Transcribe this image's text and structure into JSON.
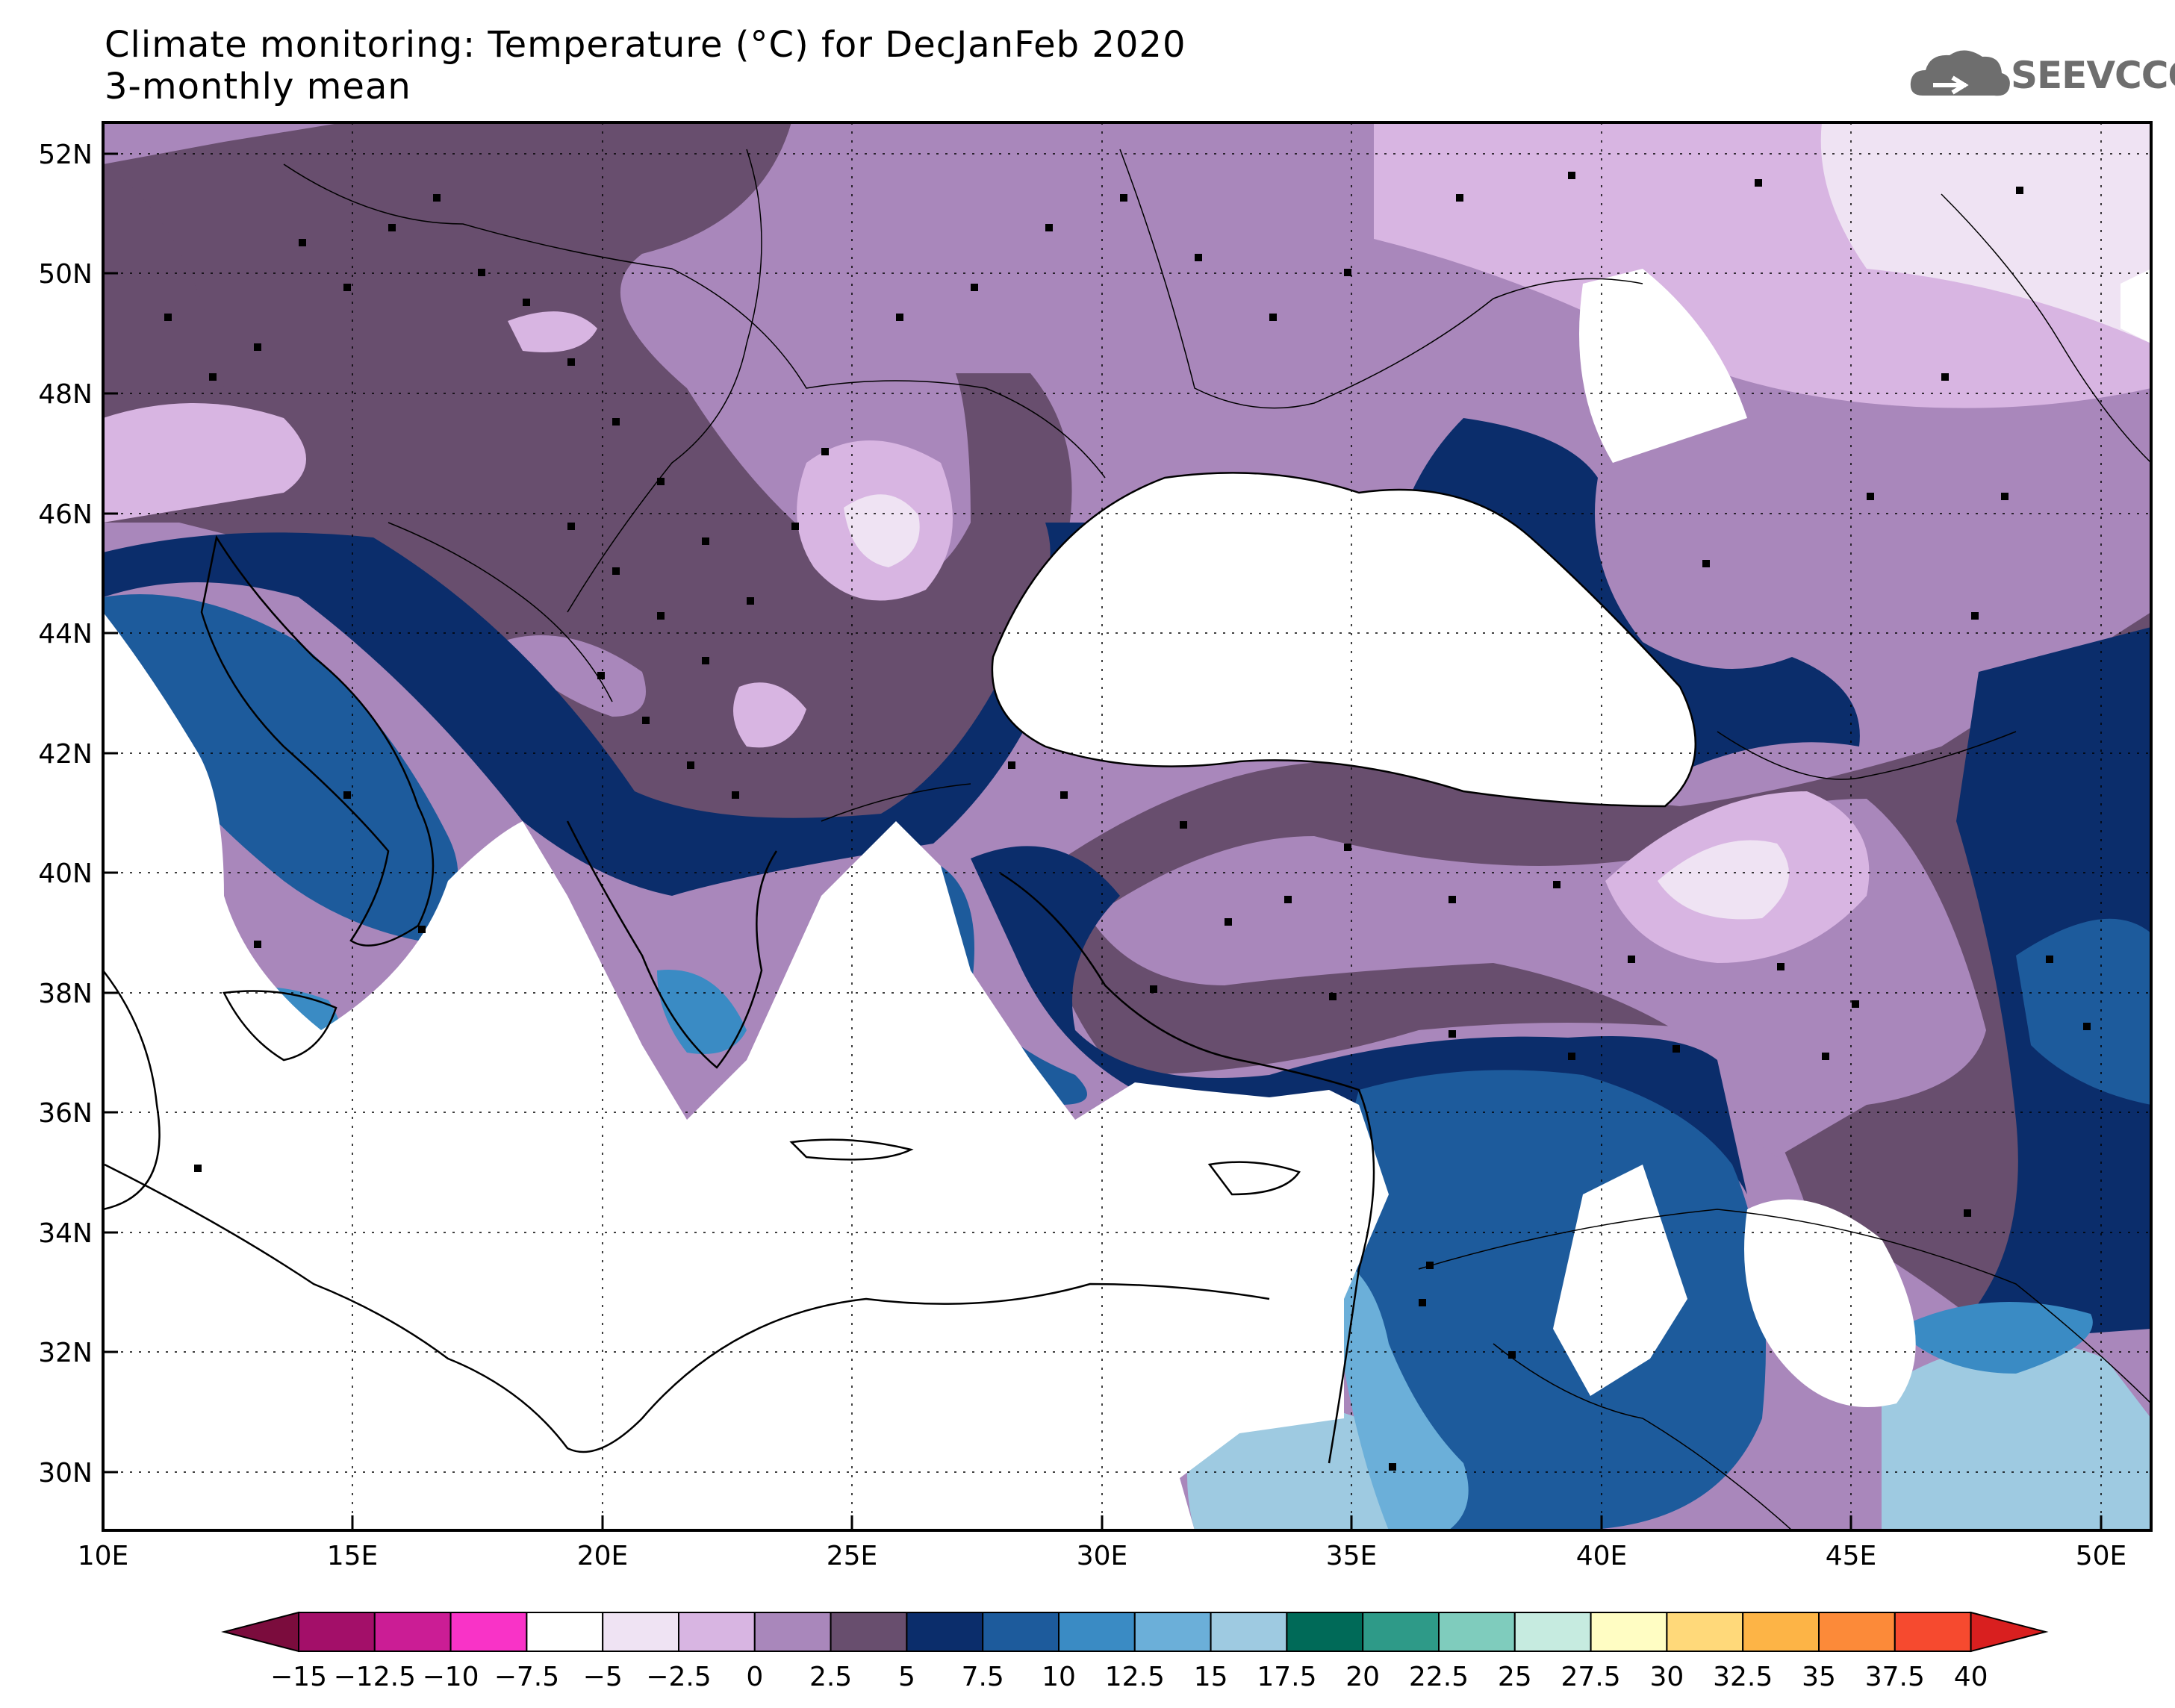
{
  "title": {
    "line1": "Climate monitoring: Temperature (°C) for DecJanFeb 2020",
    "line2": "3-monthly mean"
  },
  "logo": {
    "text": "SEEVCCC",
    "icon": "cloud-logo-icon"
  },
  "map": {
    "lat_labels": [
      "52N",
      "50N",
      "48N",
      "46N",
      "44N",
      "42N",
      "40N",
      "38N",
      "36N",
      "34N",
      "32N",
      "30N"
    ],
    "lon_labels": [
      "10E",
      "15E",
      "20E",
      "25E",
      "30E",
      "35E",
      "40E",
      "45E",
      "50E"
    ],
    "extent": {
      "lon_min": 10,
      "lon_max": 51,
      "lat_min": 29,
      "lat_max": 52.5
    },
    "gridlines": "dotted"
  },
  "colorbar": {
    "labels": [
      "-15",
      "-12.5",
      "-10",
      "-7.5",
      "-5",
      "-2.5",
      "0",
      "2.5",
      "5",
      "7.5",
      "10",
      "12.5",
      "15",
      "17.5",
      "20",
      "22.5",
      "25",
      "27.5",
      "30",
      "32.5",
      "35",
      "37.5",
      "40"
    ],
    "colors": [
      "#7b0c3d",
      "#a30f69",
      "#cb1d95",
      "#f933c7",
      "#ffffff",
      "#efe3f3",
      "#d8b5e2",
      "#a987bb",
      "#684e6e",
      "#0b2d6b",
      "#1d5b9c",
      "#3a8bc4",
      "#6bafd9",
      "#9ecae1",
      "#006a58",
      "#2e9a88",
      "#7fccbd",
      "#c6ebe0",
      "#fffdc3",
      "#ffd97a",
      "#fdb446",
      "#fc8a39",
      "#f64a2f",
      "#d91f1f"
    ]
  }
}
